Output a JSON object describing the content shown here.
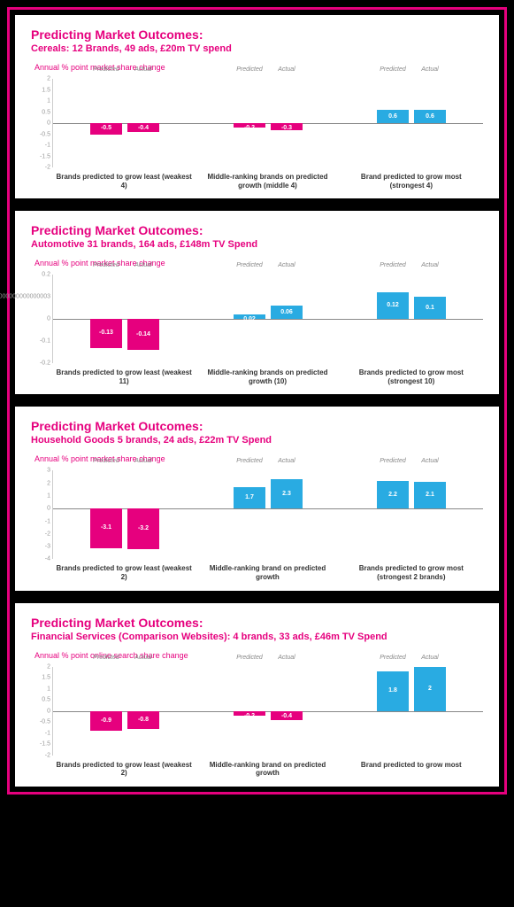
{
  "colors": {
    "pink": "#e6007e",
    "blue": "#29abe2",
    "axis": "#888888",
    "tick": "#999999",
    "bg": "#ffffff"
  },
  "panels": [
    {
      "title": "Predicting Market Outcomes:",
      "subtitle": "Cereals: 12 Brands, 49 ads, £20m TV spend",
      "yaxis": "Annual % point market share change",
      "ymin": -2,
      "ymax": 2,
      "ystep": 0.5,
      "series": [
        "Predicted",
        "Actual"
      ],
      "groups": [
        {
          "label": "Brands predicted to grow least (weakest 4)",
          "values": [
            -0.5,
            -0.4
          ],
          "colors": [
            "pink",
            "pink"
          ]
        },
        {
          "label": "Middle-ranking brands on predicted growth (middle 4)",
          "values": [
            -0.2,
            -0.3
          ],
          "colors": [
            "pink",
            "pink"
          ]
        },
        {
          "label": "Brand predicted to grow most (strongest 4)",
          "values": [
            0.6,
            0.6
          ],
          "colors": [
            "blue",
            "blue"
          ]
        }
      ]
    },
    {
      "title": "Predicting Market Outcomes:",
      "subtitle": "Automotive 31 brands, 164 ads, £148m TV Spend",
      "yaxis": "Annual % point market share change",
      "ymin": -0.2,
      "ymax": 0.2,
      "ystep": 0.1,
      "series": [
        "Predicted",
        "Actual"
      ],
      "groups": [
        {
          "label": "Brands predicted to grow least (weakest 11)",
          "values": [
            -0.13,
            -0.14
          ],
          "colors": [
            "pink",
            "pink"
          ]
        },
        {
          "label": "Middle-ranking brands on predicted growth (10)",
          "values": [
            0.02,
            0.06
          ],
          "colors": [
            "blue",
            "blue"
          ]
        },
        {
          "label": "Brands predicted to grow most (strongest 10)",
          "values": [
            0.12,
            0.1
          ],
          "colors": [
            "blue",
            "blue"
          ]
        }
      ]
    },
    {
      "title": "Predicting Market Outcomes:",
      "subtitle": "Household Goods 5 brands, 24 ads, £22m TV Spend",
      "yaxis": "Annual % point market share change",
      "ymin": -4,
      "ymax": 3,
      "ystep": 1,
      "series": [
        "Predicted",
        "Actual"
      ],
      "groups": [
        {
          "label": "Brands predicted to grow least (weakest 2)",
          "values": [
            -3.1,
            -3.2
          ],
          "colors": [
            "pink",
            "pink"
          ]
        },
        {
          "label": "Middle-ranking brand on predicted growth",
          "values": [
            1.7,
            2.3
          ],
          "colors": [
            "blue",
            "blue"
          ]
        },
        {
          "label": "Brands predicted to grow most (strongest 2 brands)",
          "values": [
            2.2,
            2.1
          ],
          "colors": [
            "blue",
            "blue"
          ]
        }
      ]
    },
    {
      "title": "Predicting Market Outcomes:",
      "subtitle": "Financial Services (Comparison Websites): 4 brands, 33 ads, £46m TV Spend",
      "yaxis": "Annual % point online search share change",
      "ymin": -2,
      "ymax": 2,
      "ystep": 0.5,
      "series": [
        "Predicted",
        "Actual"
      ],
      "groups": [
        {
          "label": "Brands predicted to grow least (weakest 2)",
          "values": [
            -0.9,
            -0.8
          ],
          "colors": [
            "pink",
            "pink"
          ]
        },
        {
          "label": "Middle-ranking brand on predicted growth",
          "values": [
            -0.2,
            -0.4
          ],
          "colors": [
            "pink",
            "pink"
          ]
        },
        {
          "label": "Brand predicted to grow most",
          "values": [
            1.8,
            2.0
          ],
          "colors": [
            "blue",
            "blue"
          ]
        }
      ]
    }
  ]
}
